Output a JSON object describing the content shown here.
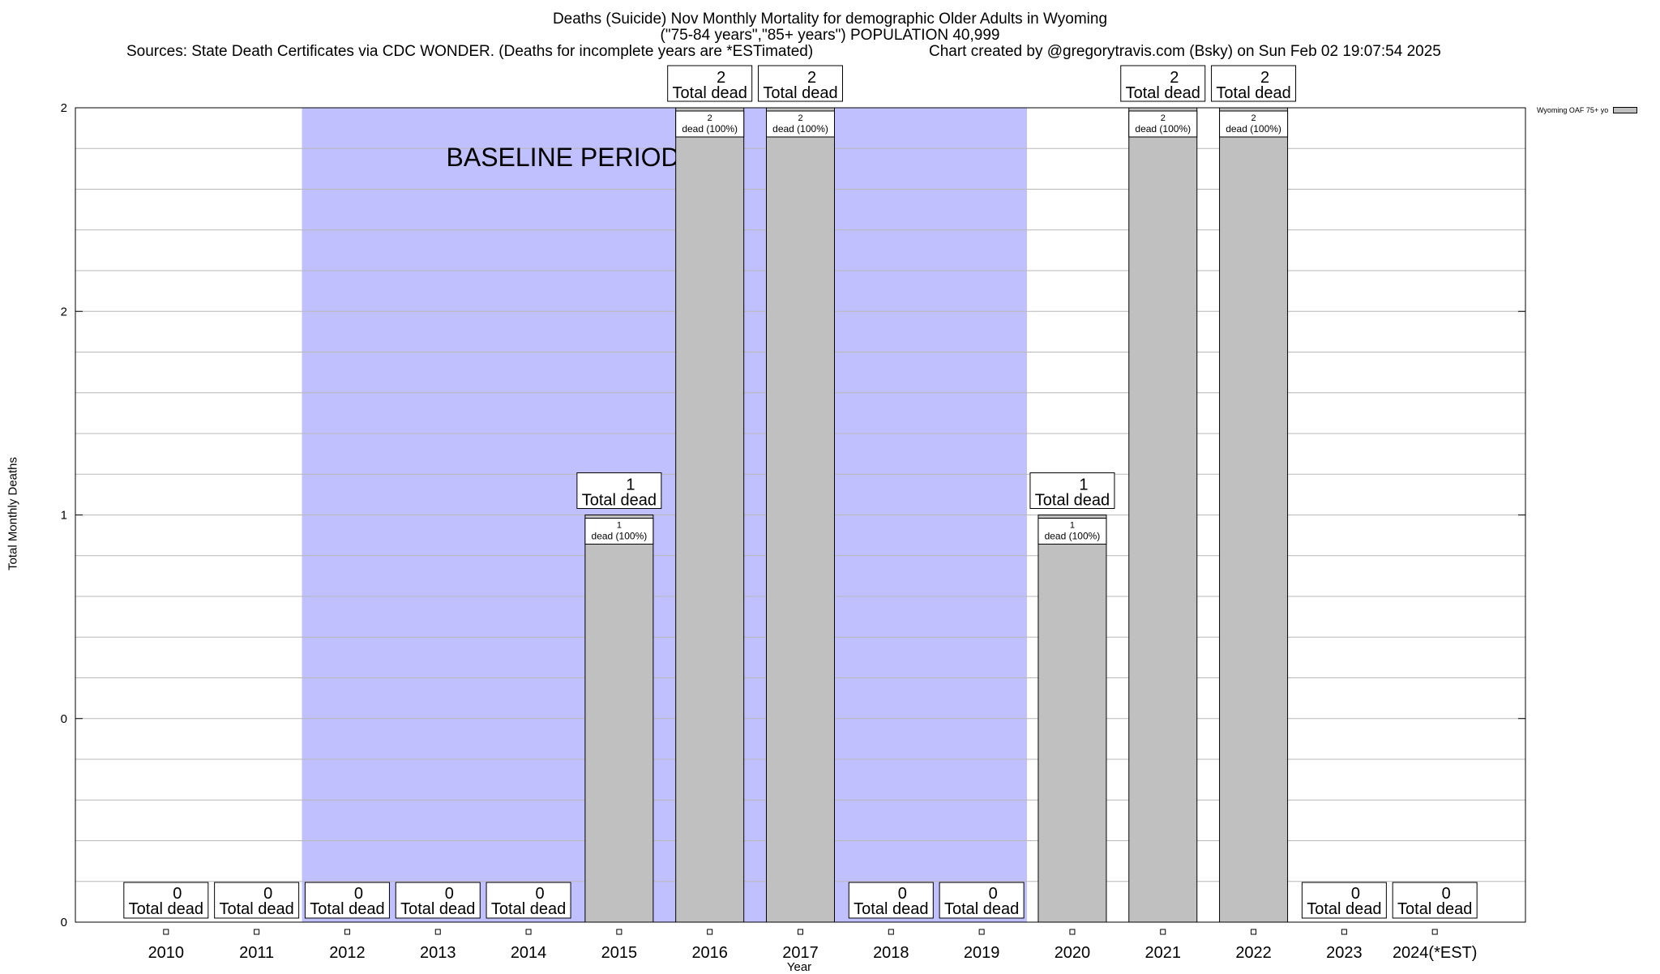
{
  "chart_data": {
    "type": "bar",
    "title": "Deaths (Suicide) Nov Monthly Mortality for demographic Older Adults in Wyoming",
    "subtitle": "(\"75-84 years\",\"85+ years\") POPULATION 40,999",
    "sources": "Sources: State Death Certificates via CDC WONDER. (Deaths for incomplete years are *ESTimated)",
    "credit": "Chart created by @gregorytravis.com (Bsky) on Sun Feb 02 19:07:54 2025",
    "xlabel": "Year",
    "ylabel": "Total Monthly Deaths",
    "categories": [
      "2010",
      "2011",
      "2012",
      "2013",
      "2014",
      "2015",
      "2016",
      "2017",
      "2018",
      "2019",
      "2020",
      "2021",
      "2022",
      "2023",
      "2024(*EST)"
    ],
    "series": [
      {
        "name": "Wyoming OAF 75+ yo",
        "values": [
          0,
          0,
          0,
          0,
          0,
          1,
          2,
          2,
          0,
          0,
          1,
          2,
          2,
          0,
          0
        ]
      }
    ],
    "ylim": [
      0,
      2
    ],
    "yticks": [
      0,
      0.5,
      1,
      1.5,
      2
    ],
    "ytick_labels": [
      "0",
      "0",
      "1",
      "2",
      "2"
    ],
    "total_label_suffix": "Total dead",
    "inner_label_suffix": "dead (100%)",
    "baseline": {
      "label": "BASELINE PERIOD",
      "start": "2012",
      "end": "2019",
      "color": "#c0c0ff"
    },
    "bar_color": "#c0c0c0",
    "grid": true,
    "legend_position": "top-right"
  }
}
